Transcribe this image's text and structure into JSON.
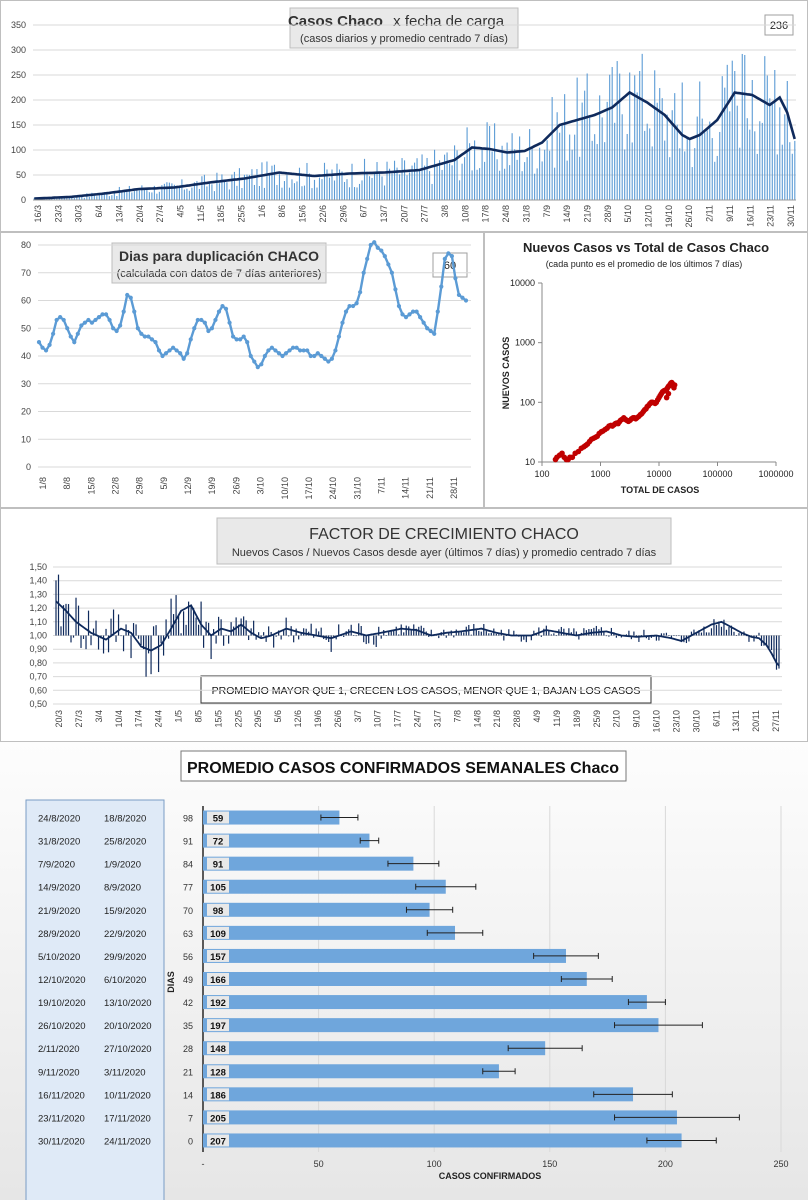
{
  "colors": {
    "bar": "#5b9bd5",
    "dark_line": "#0f2a5c",
    "light_line": "#5b9bd5",
    "scatter": "#c00000",
    "gridline": "#d9d9d9",
    "weekly_bar": "#6fa6dc"
  },
  "chart_data": [
    {
      "id": "daily_cases",
      "type": "bar",
      "title": "Casos Chaco",
      "title_suffix": "x fecha de carga",
      "subtitle": "(casos diarios y promedio  centrado 7 días)",
      "badge": "236",
      "ylim": [
        0,
        350
      ],
      "y_ticks": [
        0,
        50,
        100,
        150,
        200,
        250,
        300,
        350
      ],
      "x_tick_labels": [
        "16/3",
        "23/3",
        "30/3",
        "6/4",
        "13/4",
        "20/4",
        "27/4",
        "4/5",
        "11/5",
        "18/5",
        "25/5",
        "1/6",
        "8/6",
        "15/6",
        "22/6",
        "29/6",
        "6/7",
        "13/7",
        "20/7",
        "27/7",
        "3/8",
        "10/8",
        "17/8",
        "24/8",
        "31/8",
        "7/9",
        "14/9",
        "21/9",
        "28/9",
        "5/10",
        "12/10",
        "19/10",
        "26/10",
        "2/11",
        "9/11",
        "16/11",
        "23/11",
        "30/11"
      ],
      "average_keypoints": [
        [
          0,
          3
        ],
        [
          14,
          6
        ],
        [
          28,
          13
        ],
        [
          42,
          22
        ],
        [
          56,
          25
        ],
        [
          70,
          35
        ],
        [
          84,
          43
        ],
        [
          98,
          55
        ],
        [
          112,
          48
        ],
        [
          126,
          53
        ],
        [
          140,
          55
        ],
        [
          154,
          60
        ],
        [
          168,
          80
        ],
        [
          175,
          105
        ],
        [
          182,
          102
        ],
        [
          189,
          95
        ],
        [
          196,
          98
        ],
        [
          203,
          115
        ],
        [
          210,
          150
        ],
        [
          217,
          160
        ],
        [
          224,
          170
        ],
        [
          231,
          185
        ],
        [
          238,
          215
        ],
        [
          245,
          195
        ],
        [
          252,
          170
        ],
        [
          259,
          130
        ],
        [
          262,
          122
        ],
        [
          266,
          130
        ],
        [
          273,
          160
        ],
        [
          280,
          215
        ],
        [
          287,
          210
        ],
        [
          294,
          190
        ],
        [
          298,
          205
        ],
        [
          301,
          175
        ],
        [
          304,
          122
        ]
      ],
      "peak_days": [
        [
          238,
          255
        ],
        [
          242,
          258
        ],
        [
          259,
          235
        ],
        [
          266,
          237
        ],
        [
          280,
          258
        ],
        [
          284,
          290
        ],
        [
          287,
          240
        ],
        [
          296,
          260
        ],
        [
          301,
          238
        ]
      ]
    },
    {
      "id": "doubling_days",
      "type": "line",
      "title": "Dias para duplicación  CHACO",
      "subtitle": "(calculada con datos de 7 días anteriores)",
      "badge": "60",
      "ylim": [
        0,
        80
      ],
      "y_ticks": [
        0,
        10,
        20,
        30,
        40,
        50,
        60,
        70,
        80
      ],
      "x_tick_labels": [
        "1/8",
        "8/8",
        "15/8",
        "22/8",
        "29/8",
        "5/9",
        "12/9",
        "19/9",
        "26/9",
        "3/10",
        "10/10",
        "17/10",
        "24/10",
        "31/10",
        "7/11",
        "14/11",
        "21/11",
        "28/11"
      ],
      "values": [
        45,
        43,
        42,
        44,
        48,
        53,
        54,
        53,
        50,
        47,
        45,
        48,
        51,
        52,
        53,
        52,
        53,
        54,
        55,
        55,
        53,
        50,
        49,
        51,
        56,
        62,
        61,
        56,
        50,
        48,
        47,
        47,
        46,
        45,
        42,
        40,
        41,
        42,
        43,
        42,
        41,
        39,
        41,
        46,
        50,
        53,
        53,
        52,
        49,
        50,
        53,
        56,
        58,
        57,
        52,
        47,
        46,
        46,
        47,
        45,
        40,
        38,
        36,
        37,
        40,
        42,
        43,
        42,
        41,
        40,
        41,
        42,
        43,
        43,
        42,
        42,
        42,
        40,
        40,
        41,
        40,
        39,
        38,
        39,
        42,
        47,
        52,
        56,
        58,
        58,
        59,
        63,
        70,
        75,
        80,
        81,
        79,
        78,
        76,
        73,
        70,
        64,
        58,
        55,
        54,
        55,
        56,
        56,
        54,
        52,
        50,
        49,
        48,
        56,
        65,
        75,
        77,
        76,
        68,
        62,
        61,
        60
      ]
    },
    {
      "id": "new_vs_total",
      "type": "scatter",
      "title": "Nuevos Casos vs Total de Casos Chaco",
      "subtitle": "(cada punto es el promedio de los últimos 7 días)",
      "xlabel": "TOTAL DE CASOS",
      "ylabel": "NUEVOS  CASOS",
      "x_log_range": [
        100,
        1000000
      ],
      "y_log_range": [
        10,
        10000
      ],
      "x_tick_labels": [
        "100",
        "1000",
        "10000",
        "100000",
        "1000000"
      ],
      "y_tick_labels": [
        "10",
        "100",
        "1000",
        "10000"
      ],
      "points": [
        [
          170,
          11
        ],
        [
          180,
          12
        ],
        [
          200,
          13
        ],
        [
          220,
          14
        ],
        [
          240,
          12
        ],
        [
          260,
          11
        ],
        [
          280,
          11
        ],
        [
          300,
          12
        ],
        [
          330,
          12
        ],
        [
          370,
          14
        ],
        [
          420,
          15
        ],
        [
          470,
          17
        ],
        [
          520,
          18
        ],
        [
          560,
          19
        ],
        [
          600,
          20
        ],
        [
          650,
          22
        ],
        [
          700,
          24
        ],
        [
          760,
          25
        ],
        [
          820,
          26
        ],
        [
          880,
          27
        ],
        [
          950,
          30
        ],
        [
          1030,
          32
        ],
        [
          1100,
          33
        ],
        [
          1200,
          35
        ],
        [
          1300,
          37
        ],
        [
          1400,
          40
        ],
        [
          1500,
          41
        ],
        [
          1600,
          40
        ],
        [
          1700,
          42
        ],
        [
          1800,
          44
        ],
        [
          1900,
          45
        ],
        [
          2000,
          44
        ],
        [
          2100,
          47
        ],
        [
          2200,
          50
        ],
        [
          2350,
          52
        ],
        [
          2500,
          55
        ],
        [
          2650,
          52
        ],
        [
          2800,
          50
        ],
        [
          3000,
          48
        ],
        [
          3200,
          50
        ],
        [
          3400,
          53
        ],
        [
          3600,
          55
        ],
        [
          3800,
          55
        ],
        [
          4000,
          53
        ],
        [
          4200,
          55
        ],
        [
          4500,
          58
        ],
        [
          4800,
          62
        ],
        [
          5100,
          65
        ],
        [
          5400,
          70
        ],
        [
          5700,
          75
        ],
        [
          6000,
          78
        ],
        [
          6300,
          85
        ],
        [
          6600,
          88
        ],
        [
          7000,
          95
        ],
        [
          7400,
          100
        ],
        [
          7800,
          100
        ],
        [
          8200,
          98
        ],
        [
          8600,
          96
        ],
        [
          9000,
          100
        ],
        [
          9500,
          110
        ],
        [
          10000,
          120
        ],
        [
          10500,
          130
        ],
        [
          11000,
          140
        ],
        [
          11500,
          150
        ],
        [
          12000,
          155
        ],
        [
          12500,
          158
        ],
        [
          13000,
          160
        ],
        [
          13500,
          165
        ],
        [
          14000,
          175
        ],
        [
          14500,
          185
        ],
        [
          15000,
          190
        ],
        [
          15500,
          200
        ],
        [
          16000,
          210
        ],
        [
          16500,
          215
        ],
        [
          17000,
          205
        ],
        [
          17500,
          190
        ],
        [
          18000,
          175
        ],
        [
          13500,
          120
        ],
        [
          14500,
          140
        ],
        [
          16500,
          200
        ],
        [
          18500,
          195
        ]
      ]
    },
    {
      "id": "growth_factor",
      "type": "bar",
      "title": "FACTOR DE CRECIMIENTO CHACO",
      "subtitle": "Nuevos Casos  / Nuevos Casos desde ayer (últimos 7 días) y promedio  centrado 7 días",
      "note": "PROMEDIO MAYOR QUE 1, CRECEN LOS CASOS, MENOR QUE 1, BAJAN LOS CASOS",
      "ylim": [
        0.5,
        1.5
      ],
      "y_tick_labels": [
        "0,50",
        "0,60",
        "0,70",
        "0,80",
        "0,90",
        "1,00",
        "1,10",
        "1,20",
        "1,30",
        "1,40",
        "1,50"
      ],
      "x_tick_labels": [
        "20/3",
        "27/3",
        "3/4",
        "10/4",
        "17/4",
        "24/4",
        "1/5",
        "8/5",
        "15/5",
        "22/5",
        "29/5",
        "5/6",
        "12/6",
        "19/6",
        "26/6",
        "3/7",
        "10/7",
        "17/7",
        "24/7",
        "31/7",
        "7/8",
        "14/8",
        "21/8",
        "28/8",
        "4/9",
        "11/9",
        "18/9",
        "25/9",
        "2/10",
        "9/10",
        "16/10",
        "23/10",
        "30/10",
        "6/11",
        "13/11",
        "20/11",
        "27/11"
      ],
      "average_keypoints": [
        [
          0,
          1.25
        ],
        [
          4,
          1.18
        ],
        [
          8,
          1.1
        ],
        [
          14,
          1.02
        ],
        [
          20,
          0.97
        ],
        [
          26,
          1.05
        ],
        [
          30,
          1.02
        ],
        [
          34,
          0.92
        ],
        [
          38,
          0.89
        ],
        [
          42,
          0.93
        ],
        [
          46,
          1.05
        ],
        [
          50,
          1.18
        ],
        [
          54,
          1.22
        ],
        [
          58,
          1.08
        ],
        [
          62,
          1.0
        ],
        [
          66,
          1.05
        ],
        [
          70,
          1.03
        ],
        [
          74,
          1.08
        ],
        [
          78,
          1.02
        ],
        [
          82,
          0.98
        ],
        [
          86,
          1.0
        ],
        [
          92,
          1.05
        ],
        [
          98,
          1.02
        ],
        [
          104,
          1.0
        ],
        [
          110,
          0.98
        ],
        [
          118,
          1.03
        ],
        [
          124,
          1.0
        ],
        [
          130,
          1.02
        ],
        [
          138,
          1.05
        ],
        [
          144,
          1.04
        ],
        [
          150,
          1.0
        ],
        [
          156,
          1.02
        ],
        [
          162,
          1.03
        ],
        [
          170,
          1.05
        ],
        [
          176,
          1.02
        ],
        [
          182,
          1.0
        ],
        [
          190,
          1.0
        ],
        [
          196,
          1.04
        ],
        [
          202,
          1.02
        ],
        [
          208,
          1.0
        ],
        [
          214,
          1.02
        ],
        [
          220,
          1.03
        ],
        [
          226,
          1.0
        ],
        [
          232,
          0.99
        ],
        [
          240,
          1.0
        ],
        [
          246,
          0.98
        ],
        [
          250,
          0.96
        ],
        [
          256,
          1.02
        ],
        [
          262,
          1.08
        ],
        [
          266,
          1.1
        ],
        [
          270,
          1.06
        ],
        [
          274,
          1.02
        ],
        [
          278,
          0.99
        ],
        [
          281,
          0.98
        ],
        [
          284,
          0.93
        ],
        [
          286,
          0.87
        ],
        [
          288,
          0.8
        ],
        [
          289,
          0.78
        ]
      ]
    },
    {
      "id": "weekly_average",
      "type": "bar",
      "orientation": "horizontal",
      "title": "PROMEDIO CASOS CONFIRMADOS SEMANALES Chaco",
      "xlabel": "CASOS CONFIRMADOS",
      "ylabel": "DIAS",
      "xlim": [
        0,
        250
      ],
      "x_tick_labels": [
        "-",
        "50",
        "100",
        "150",
        "200",
        "250"
      ],
      "rows": [
        {
          "date_a": "24/8/2020",
          "date_b": "18/8/2020",
          "days": "98",
          "value": 59,
          "err": 8
        },
        {
          "date_a": "31/8/2020",
          "date_b": "25/8/2020",
          "days": "91",
          "value": 72,
          "err": 4
        },
        {
          "date_a": "7/9/2020",
          "date_b": "1/9/2020",
          "days": "84",
          "value": 91,
          "err": 11
        },
        {
          "date_a": "14/9/2020",
          "date_b": "8/9/2020",
          "days": "77",
          "value": 105,
          "err": 13
        },
        {
          "date_a": "21/9/2020",
          "date_b": "15/9/2020",
          "days": "70",
          "value": 98,
          "err": 10
        },
        {
          "date_a": "28/9/2020",
          "date_b": "22/9/2020",
          "days": "63",
          "value": 109,
          "err": 12
        },
        {
          "date_a": "5/10/2020",
          "date_b": "29/9/2020",
          "days": "56",
          "value": 157,
          "err": 14
        },
        {
          "date_a": "12/10/2020",
          "date_b": "6/10/2020",
          "days": "49",
          "value": 166,
          "err": 11
        },
        {
          "date_a": "19/10/2020",
          "date_b": "13/10/2020",
          "days": "42",
          "value": 192,
          "err": 8
        },
        {
          "date_a": "26/10/2020",
          "date_b": "20/10/2020",
          "days": "35",
          "value": 197,
          "err": 19
        },
        {
          "date_a": "2/11/2020",
          "date_b": "27/10/2020",
          "days": "28",
          "value": 148,
          "err": 16
        },
        {
          "date_a": "9/11/2020",
          "date_b": "3/11/2020",
          "days": "21",
          "value": 128,
          "err": 7
        },
        {
          "date_a": "16/11/2020",
          "date_b": "10/11/2020",
          "days": "14",
          "value": 186,
          "err": 17
        },
        {
          "date_a": "23/11/2020",
          "date_b": "17/11/2020",
          "days": "7",
          "value": 205,
          "err": 27
        },
        {
          "date_a": "30/11/2020",
          "date_b": "24/11/2020",
          "days": "0",
          "value": 207,
          "err": 15
        }
      ]
    }
  ]
}
